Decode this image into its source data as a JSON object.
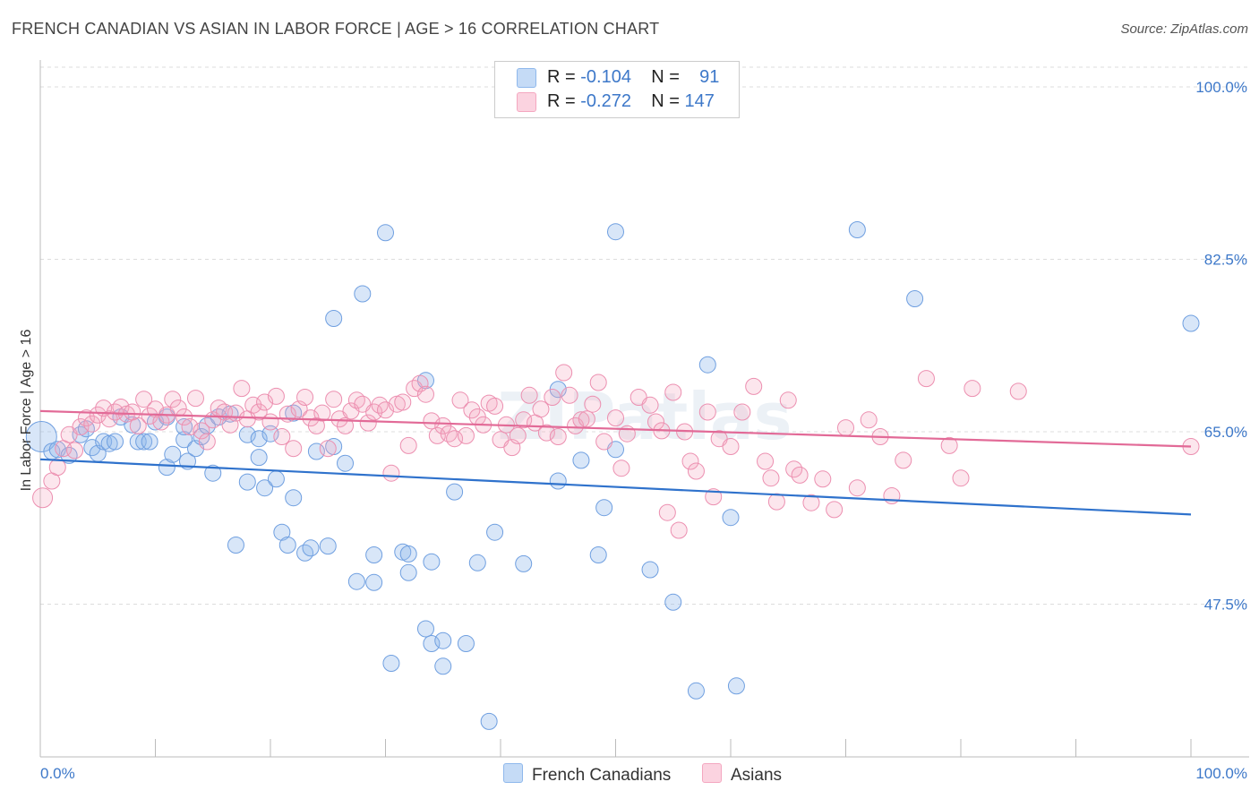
{
  "title": "FRENCH CANADIAN VS ASIAN IN LABOR FORCE | AGE > 16 CORRELATION CHART",
  "source": "Source: ZipAtlas.com",
  "watermark": "ZIPatlas",
  "legend": {
    "rows": [
      {
        "r_label": "R =",
        "r_value": "-0.104",
        "n_label": "N =",
        "n_value": "91"
      },
      {
        "r_label": "R =",
        "r_value": "-0.272",
        "n_label": "N =",
        "n_value": "147"
      }
    ]
  },
  "bottom_legend": [
    "French Canadians",
    "Asians"
  ],
  "chart_data": {
    "type": "scatter",
    "ylabel": "In Labor Force | Age > 16",
    "x_tick_labels": [
      "0.0%",
      "100.0%"
    ],
    "y_tick_labels": [
      "100.0%",
      "82.5%",
      "65.0%",
      "47.5%"
    ],
    "y_ticks": [
      100.0,
      82.5,
      65.0,
      47.5
    ],
    "xlim": [
      0,
      100
    ],
    "ylim": [
      32,
      102
    ],
    "grid": true,
    "colors": {
      "French Canadians": "#8fb8ec",
      "Asians": "#f4a7c0",
      "blue_line": "#2f72cc",
      "pink_line": "#e26a97",
      "tick_label": "#3d78c9"
    },
    "series": [
      {
        "name": "French Canadians",
        "trend": {
          "x": [
            0,
            100
          ],
          "y": [
            62.2,
            56.6
          ]
        },
        "points": [
          [
            0.1,
            64.5
          ],
          [
            1,
            63
          ],
          [
            1.5,
            63.2
          ],
          [
            2.5,
            62.6
          ],
          [
            3.5,
            64.7
          ],
          [
            4,
            65.3
          ],
          [
            4.5,
            63.4
          ],
          [
            5,
            62.8
          ],
          [
            5.5,
            64
          ],
          [
            6,
            63.8
          ],
          [
            6.5,
            64
          ],
          [
            7,
            66.5
          ],
          [
            8,
            65.7
          ],
          [
            8.5,
            64
          ],
          [
            9,
            64
          ],
          [
            9.5,
            64
          ],
          [
            10,
            66
          ],
          [
            11,
            66.5
          ],
          [
            11,
            61.4
          ],
          [
            11.5,
            62.7
          ],
          [
            12.5,
            64.2
          ],
          [
            12.5,
            65.5
          ],
          [
            12.8,
            62
          ],
          [
            13.5,
            63.3
          ],
          [
            14,
            64.5
          ],
          [
            14.5,
            65.6
          ],
          [
            15,
            60.8
          ],
          [
            15.5,
            66.5
          ],
          [
            16.5,
            66.8
          ],
          [
            17,
            53.5
          ],
          [
            18,
            59.9
          ],
          [
            18,
            64.7
          ],
          [
            19,
            62.4
          ],
          [
            19,
            64.3
          ],
          [
            19.5,
            59.3
          ],
          [
            20,
            64.8
          ],
          [
            20.5,
            60.2
          ],
          [
            21,
            54.8
          ],
          [
            21.5,
            53.5
          ],
          [
            22,
            58.3
          ],
          [
            22,
            66.9
          ],
          [
            23,
            52.7
          ],
          [
            23.5,
            53.2
          ],
          [
            24,
            63
          ],
          [
            25,
            53.4
          ],
          [
            25.5,
            76.5
          ],
          [
            25.5,
            63.5
          ],
          [
            26.5,
            61.8
          ],
          [
            27.5,
            49.8
          ],
          [
            28,
            79
          ],
          [
            29,
            52.5
          ],
          [
            29,
            49.7
          ],
          [
            30,
            85.2
          ],
          [
            30.5,
            41.5
          ],
          [
            31.5,
            52.8
          ],
          [
            32,
            52.6
          ],
          [
            32,
            50.7
          ],
          [
            33.5,
            70.2
          ],
          [
            33.5,
            45
          ],
          [
            34,
            51.8
          ],
          [
            34,
            43.5
          ],
          [
            35,
            43.8
          ],
          [
            35,
            41.2
          ],
          [
            36,
            58.9
          ],
          [
            37,
            43.5
          ],
          [
            38,
            51.7
          ],
          [
            39,
            35.6
          ],
          [
            39.5,
            54.8
          ],
          [
            42,
            51.6
          ],
          [
            45,
            69.3
          ],
          [
            45,
            60
          ],
          [
            47,
            62.1
          ],
          [
            48.5,
            52.5
          ],
          [
            49,
            57.3
          ],
          [
            50,
            85.3
          ],
          [
            50,
            63.2
          ],
          [
            53,
            51
          ],
          [
            55,
            47.7
          ],
          [
            57,
            38.7
          ],
          [
            58,
            71.8
          ],
          [
            60,
            56.3
          ],
          [
            60.5,
            39.2
          ],
          [
            71,
            85.5
          ],
          [
            76,
            78.5
          ],
          [
            100,
            76
          ]
        ]
      },
      {
        "name": "Asians",
        "trend": {
          "x": [
            0,
            100
          ],
          "y": [
            67.1,
            63.5
          ]
        },
        "points": [
          [
            0.2,
            58.3
          ],
          [
            1,
            60
          ],
          [
            1.5,
            61.4
          ],
          [
            2,
            63.3
          ],
          [
            2.5,
            64.7
          ],
          [
            3,
            63.1
          ],
          [
            3.5,
            65.5
          ],
          [
            4,
            66.4
          ],
          [
            4.5,
            65.8
          ],
          [
            5,
            66.7
          ],
          [
            5.5,
            67.4
          ],
          [
            6,
            66.3
          ],
          [
            6.5,
            67
          ],
          [
            7,
            67.5
          ],
          [
            7.5,
            66.8
          ],
          [
            8,
            67
          ],
          [
            8.5,
            65.6
          ],
          [
            9,
            68.3
          ],
          [
            9.5,
            66.6
          ],
          [
            10,
            67.3
          ],
          [
            10.5,
            66
          ],
          [
            11,
            66.7
          ],
          [
            11.5,
            68.3
          ],
          [
            12,
            67.4
          ],
          [
            12.5,
            66.5
          ],
          [
            13,
            65.5
          ],
          [
            13.5,
            68.4
          ],
          [
            14,
            65.1
          ],
          [
            14.5,
            64
          ],
          [
            15,
            66.2
          ],
          [
            15.5,
            67.4
          ],
          [
            16,
            67
          ],
          [
            16.5,
            65.7
          ],
          [
            17,
            66.9
          ],
          [
            17.5,
            69.4
          ],
          [
            18,
            66.3
          ],
          [
            18.5,
            67.7
          ],
          [
            19,
            67
          ],
          [
            19.5,
            68
          ],
          [
            20,
            66
          ],
          [
            20.5,
            68.6
          ],
          [
            21,
            64.5
          ],
          [
            21.5,
            66.8
          ],
          [
            22,
            63.3
          ],
          [
            22.5,
            67.3
          ],
          [
            23,
            68.5
          ],
          [
            23.5,
            66.4
          ],
          [
            24,
            65.6
          ],
          [
            24.5,
            66.9
          ],
          [
            25,
            63.3
          ],
          [
            25.5,
            68.3
          ],
          [
            26,
            66.3
          ],
          [
            26.5,
            65.6
          ],
          [
            27,
            67.1
          ],
          [
            27.5,
            68.2
          ],
          [
            28,
            67.8
          ],
          [
            28.5,
            65.9
          ],
          [
            29,
            67
          ],
          [
            29.5,
            67.7
          ],
          [
            30,
            67.2
          ],
          [
            30.5,
            60.8
          ],
          [
            31,
            67.8
          ],
          [
            31.5,
            68
          ],
          [
            32,
            63.6
          ],
          [
            32.5,
            69.4
          ],
          [
            33,
            69.9
          ],
          [
            33.5,
            68.8
          ],
          [
            34,
            66.1
          ],
          [
            34.5,
            64.6
          ],
          [
            35,
            65.6
          ],
          [
            35.5,
            64.8
          ],
          [
            36,
            64.3
          ],
          [
            36.5,
            68.2
          ],
          [
            37,
            64.6
          ],
          [
            37.5,
            67.2
          ],
          [
            38,
            66.5
          ],
          [
            38.5,
            65.7
          ],
          [
            39,
            67.9
          ],
          [
            39.5,
            67.6
          ],
          [
            40,
            64.2
          ],
          [
            40.5,
            65.7
          ],
          [
            41,
            63.4
          ],
          [
            41.5,
            64.6
          ],
          [
            42,
            66.2
          ],
          [
            42.5,
            68.7
          ],
          [
            43,
            65.9
          ],
          [
            43.5,
            67.3
          ],
          [
            44,
            64.9
          ],
          [
            44.5,
            68.5
          ],
          [
            45,
            64.5
          ],
          [
            45.5,
            71
          ],
          [
            46,
            68.7
          ],
          [
            46.5,
            65.6
          ],
          [
            47,
            66.2
          ],
          [
            47.5,
            66.3
          ],
          [
            48,
            67.8
          ],
          [
            48.5,
            70
          ],
          [
            49,
            64
          ],
          [
            50,
            66.4
          ],
          [
            50.5,
            61.3
          ],
          [
            51,
            64.8
          ],
          [
            52,
            68.5
          ],
          [
            53,
            67.7
          ],
          [
            53.5,
            66
          ],
          [
            54,
            65.1
          ],
          [
            54.5,
            56.8
          ],
          [
            55,
            69
          ],
          [
            55.5,
            55
          ],
          [
            56,
            65
          ],
          [
            56.5,
            62
          ],
          [
            57,
            61
          ],
          [
            58,
            67
          ],
          [
            58.5,
            58.4
          ],
          [
            59,
            64.3
          ],
          [
            60,
            63.5
          ],
          [
            61,
            67
          ],
          [
            62,
            69.6
          ],
          [
            63,
            62
          ],
          [
            63.5,
            60.3
          ],
          [
            64,
            57.9
          ],
          [
            65,
            68.2
          ],
          [
            65.5,
            61.2
          ],
          [
            66,
            60.6
          ],
          [
            67,
            57.8
          ],
          [
            68,
            60.2
          ],
          [
            69,
            57.1
          ],
          [
            70,
            65.4
          ],
          [
            71,
            59.3
          ],
          [
            72,
            66.2
          ],
          [
            73,
            64.5
          ],
          [
            74,
            58.5
          ],
          [
            75,
            62.1
          ],
          [
            77,
            70.4
          ],
          [
            79,
            63.6
          ],
          [
            80,
            60.3
          ],
          [
            81,
            69.4
          ],
          [
            85,
            69.1
          ],
          [
            100,
            63.5
          ]
        ]
      }
    ]
  }
}
